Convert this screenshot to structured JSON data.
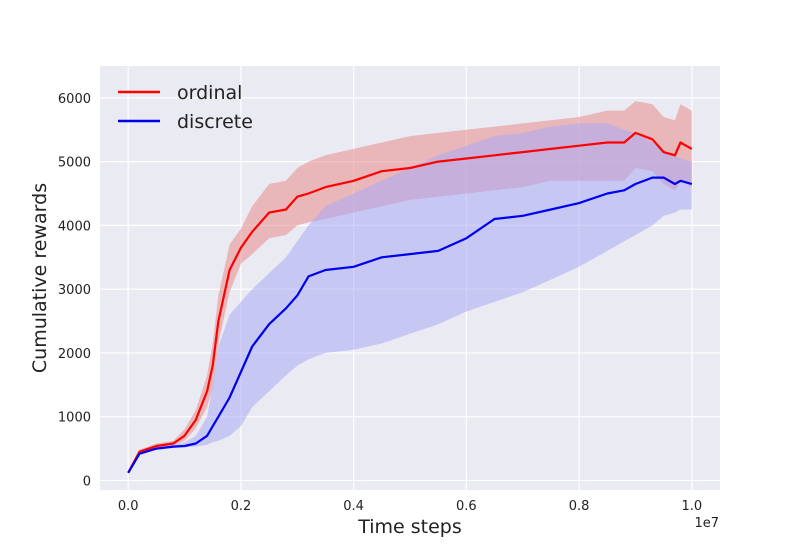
{
  "chart_data": {
    "type": "line",
    "title": "",
    "xlabel": "Time steps",
    "ylabel": "Cumulative rewards",
    "x_offset_label": "1e7",
    "xlim": [
      -0.05,
      1.05
    ],
    "ylim": [
      -150,
      6500
    ],
    "x_ticks": [
      0.0,
      0.2,
      0.4,
      0.6,
      0.8,
      1.0
    ],
    "x_tick_labels": [
      "0.0",
      "0.2",
      "0.4",
      "0.6",
      "0.8",
      "1.0"
    ],
    "y_ticks": [
      0,
      1000,
      2000,
      3000,
      4000,
      5000,
      6000
    ],
    "y_tick_labels": [
      "0",
      "1000",
      "2000",
      "3000",
      "4000",
      "5000",
      "6000"
    ],
    "grid": true,
    "legend_position": "top-left",
    "x": [
      0.0,
      0.02,
      0.05,
      0.08,
      0.1,
      0.12,
      0.14,
      0.15,
      0.16,
      0.18,
      0.2,
      0.22,
      0.25,
      0.28,
      0.3,
      0.32,
      0.35,
      0.4,
      0.45,
      0.5,
      0.55,
      0.6,
      0.65,
      0.7,
      0.75,
      0.8,
      0.85,
      0.88,
      0.9,
      0.93,
      0.95,
      0.97,
      0.98,
      1.0
    ],
    "series": [
      {
        "name": "ordinal",
        "color": "#ff0000",
        "band_color": "#e88a8a",
        "values": [
          120,
          450,
          540,
          580,
          700,
          950,
          1400,
          1800,
          2500,
          3300,
          3650,
          3900,
          4200,
          4250,
          4450,
          4500,
          4600,
          4700,
          4850,
          4900,
          5000,
          5050,
          5100,
          5150,
          5200,
          5250,
          5300,
          5300,
          5450,
          5350,
          5150,
          5100,
          5300,
          5200
        ],
        "lower": [
          120,
          420,
          500,
          550,
          620,
          820,
          1150,
          1450,
          2150,
          2950,
          3400,
          3550,
          3800,
          3850,
          4000,
          4050,
          4100,
          4200,
          4300,
          4400,
          4450,
          4500,
          4550,
          4600,
          4700,
          4700,
          4700,
          4700,
          4900,
          4850,
          4650,
          4550,
          4700,
          4600
        ],
        "upper": [
          120,
          480,
          580,
          620,
          800,
          1100,
          1650,
          2150,
          2900,
          3700,
          3950,
          4300,
          4650,
          4700,
          4900,
          5000,
          5100,
          5200,
          5300,
          5400,
          5450,
          5500,
          5550,
          5600,
          5650,
          5700,
          5800,
          5800,
          5950,
          5900,
          5700,
          5650,
          5900,
          5800
        ]
      },
      {
        "name": "discrete",
        "color": "#0000ee",
        "band_color": "#a9a9f5",
        "values": [
          120,
          420,
          500,
          530,
          540,
          580,
          700,
          850,
          1000,
          1300,
          1700,
          2100,
          2450,
          2700,
          2900,
          3200,
          3300,
          3350,
          3500,
          3550,
          3600,
          3800,
          4100,
          4150,
          4250,
          4350,
          4500,
          4550,
          4650,
          4750,
          4750,
          4650,
          4700,
          4650
        ],
        "lower": [
          120,
          400,
          480,
          510,
          520,
          530,
          560,
          600,
          620,
          700,
          850,
          1150,
          1400,
          1650,
          1800,
          1900,
          2000,
          2050,
          2150,
          2300,
          2450,
          2650,
          2800,
          2950,
          3150,
          3350,
          3600,
          3750,
          3850,
          4000,
          4150,
          4200,
          4250,
          4250
        ],
        "upper": [
          120,
          440,
          520,
          560,
          600,
          700,
          1000,
          1500,
          2100,
          2600,
          2800,
          3000,
          3250,
          3500,
          3750,
          4000,
          4300,
          4500,
          4700,
          4900,
          5100,
          5250,
          5400,
          5450,
          5550,
          5600,
          5600,
          5500,
          5450,
          5300,
          5150,
          5100,
          5050,
          5000
        ]
      }
    ]
  }
}
